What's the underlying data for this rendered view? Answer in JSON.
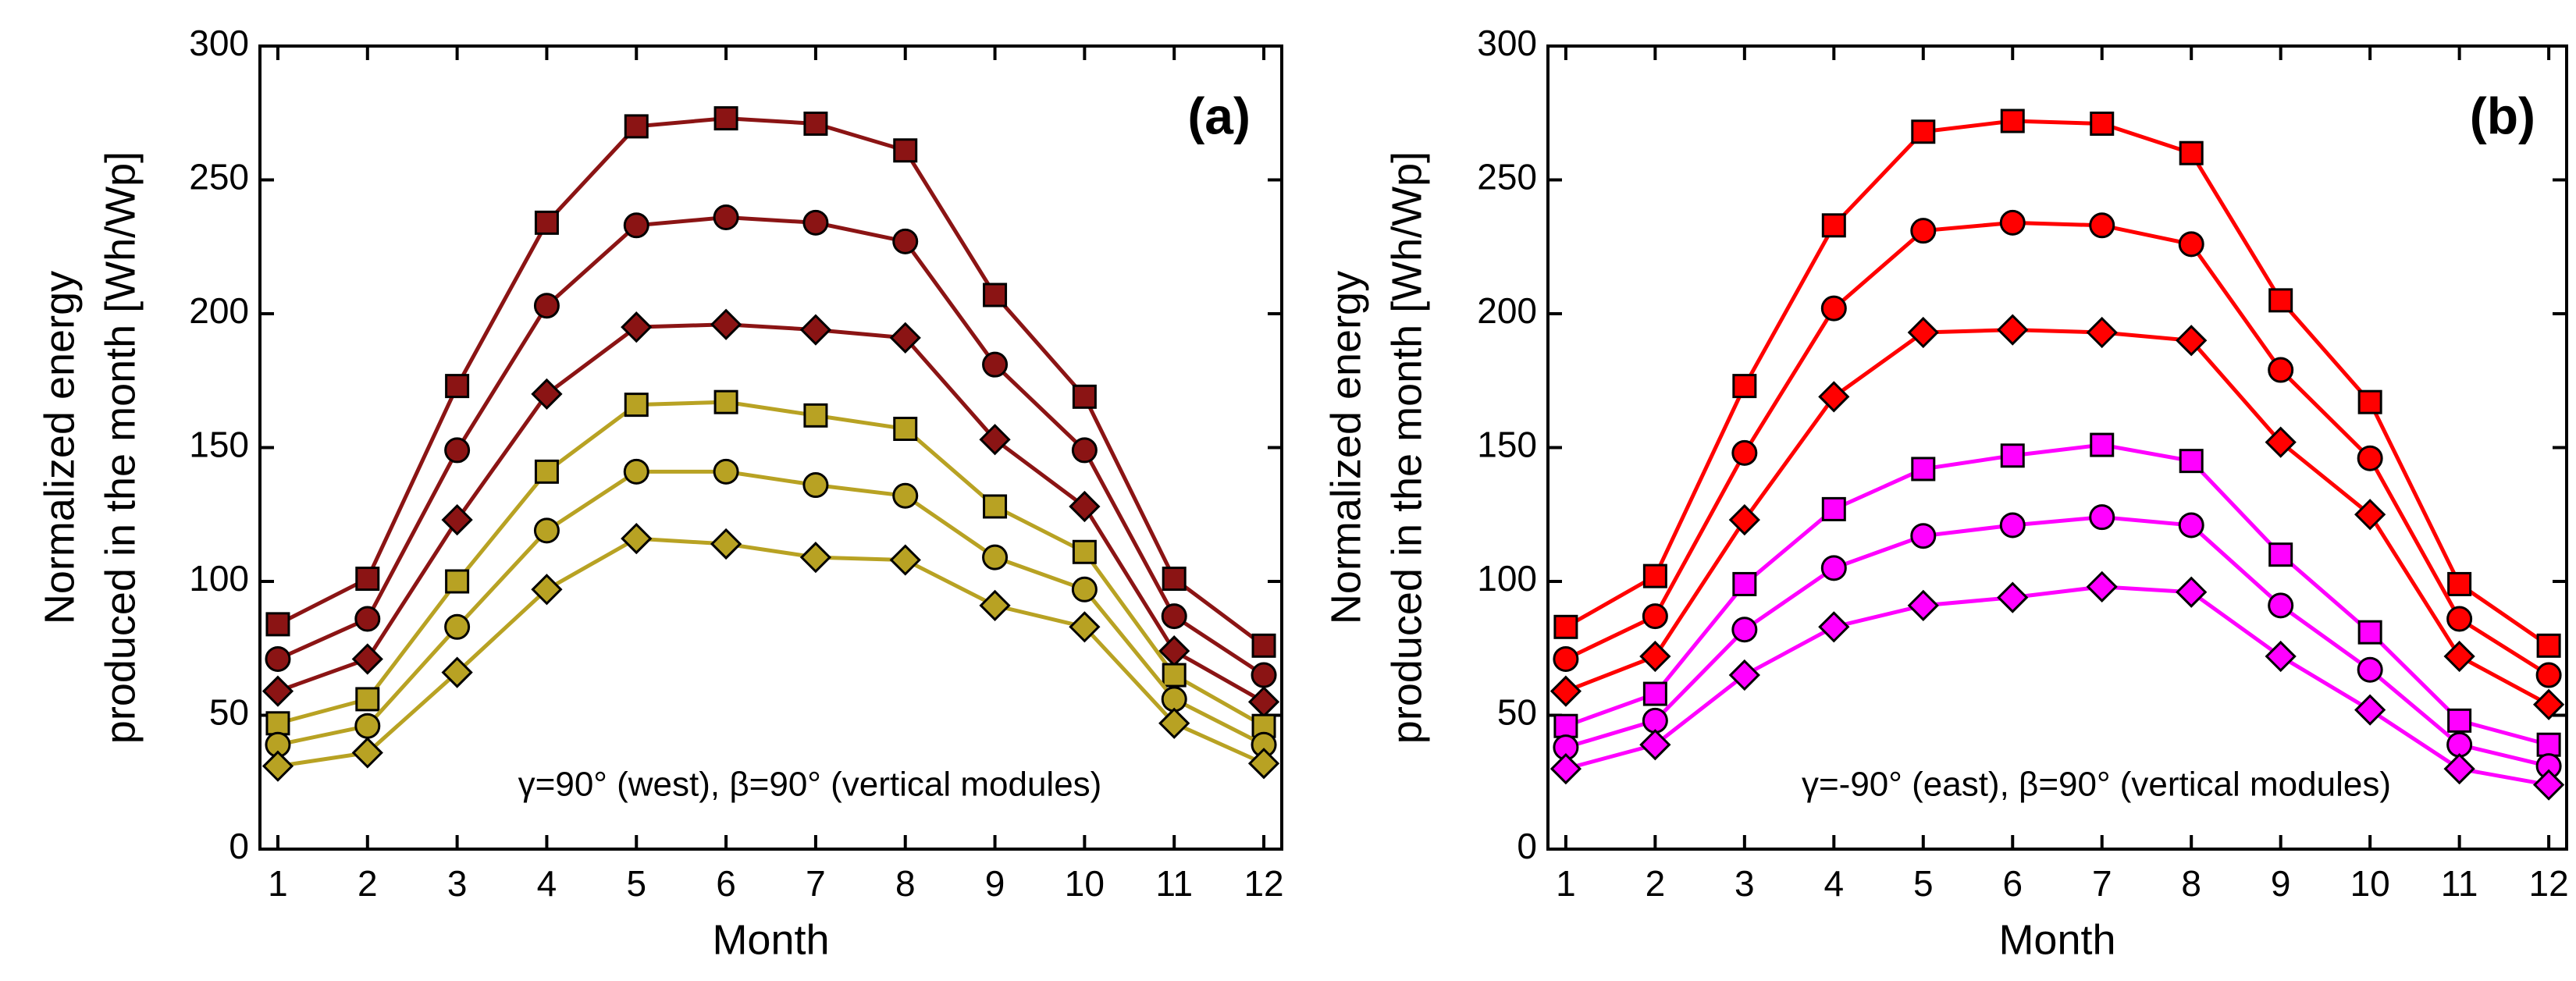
{
  "chart_data": [
    {
      "type": "line",
      "panel": "(a)",
      "annotation": "γ=90° (west), β=90° (vertical modules)",
      "xlabel": "Month",
      "ylabel": [
        "Normalized energy",
        "produced in the month [Wh/Wp]"
      ],
      "x": [
        1,
        2,
        3,
        4,
        5,
        6,
        7,
        8,
        9,
        10,
        11,
        12
      ],
      "xlim": [
        0.8,
        12.2
      ],
      "xticks": [
        1,
        2,
        3,
        4,
        5,
        6,
        7,
        8,
        9,
        10,
        11,
        12
      ],
      "ylim": [
        0,
        300
      ],
      "yticks": [
        0,
        50,
        100,
        150,
        200,
        250,
        300
      ],
      "series": [
        {
          "color": "#8b1414",
          "marker": "square",
          "values": [
            84,
            101,
            173,
            234,
            270,
            273,
            271,
            261,
            207,
            169,
            101,
            76
          ]
        },
        {
          "color": "#8b1414",
          "marker": "circle",
          "values": [
            71,
            86,
            149,
            203,
            233,
            236,
            234,
            227,
            181,
            149,
            87,
            65
          ]
        },
        {
          "color": "#8b1414",
          "marker": "diamond",
          "values": [
            59,
            71,
            123,
            170,
            195,
            196,
            194,
            191,
            153,
            128,
            74,
            55
          ]
        },
        {
          "color": "#b8a223",
          "marker": "square",
          "values": [
            47,
            56,
            100,
            141,
            166,
            167,
            162,
            157,
            128,
            111,
            65,
            46
          ]
        },
        {
          "color": "#b8a223",
          "marker": "circle",
          "values": [
            39,
            46,
            83,
            119,
            141,
            141,
            136,
            132,
            109,
            97,
            56,
            39
          ]
        },
        {
          "color": "#b8a223",
          "marker": "diamond",
          "values": [
            31,
            36,
            66,
            97,
            116,
            114,
            109,
            108,
            91,
            83,
            47,
            32
          ]
        }
      ]
    },
    {
      "type": "line",
      "panel": "(b)",
      "annotation": "γ=-90° (east), β=90° (vertical modules)",
      "xlabel": "Month",
      "ylabel": [
        "Normalized energy",
        "produced in the month [Wh/Wp]"
      ],
      "x": [
        1,
        2,
        3,
        4,
        5,
        6,
        7,
        8,
        9,
        10,
        11,
        12
      ],
      "xlim": [
        0.8,
        12.2
      ],
      "xticks": [
        1,
        2,
        3,
        4,
        5,
        6,
        7,
        8,
        9,
        10,
        11,
        12
      ],
      "ylim": [
        0,
        300
      ],
      "yticks": [
        0,
        50,
        100,
        150,
        200,
        250,
        300
      ],
      "series": [
        {
          "color": "#ff0000",
          "marker": "square",
          "values": [
            83,
            102,
            173,
            233,
            268,
            272,
            271,
            260,
            205,
            167,
            99,
            76
          ]
        },
        {
          "color": "#ff0000",
          "marker": "circle",
          "values": [
            71,
            87,
            148,
            202,
            231,
            234,
            233,
            226,
            179,
            146,
            86,
            65
          ]
        },
        {
          "color": "#ff0000",
          "marker": "diamond",
          "values": [
            59,
            72,
            123,
            169,
            193,
            194,
            193,
            190,
            152,
            125,
            72,
            54
          ]
        },
        {
          "color": "#ff00ff",
          "marker": "square",
          "values": [
            46,
            58,
            99,
            127,
            142,
            147,
            151,
            145,
            110,
            81,
            48,
            39
          ]
        },
        {
          "color": "#ff00ff",
          "marker": "circle",
          "values": [
            38,
            48,
            82,
            105,
            117,
            121,
            124,
            121,
            91,
            67,
            39,
            31
          ]
        },
        {
          "color": "#ff00ff",
          "marker": "diamond",
          "values": [
            30,
            39,
            65,
            83,
            91,
            94,
            98,
            96,
            72,
            52,
            30,
            24
          ]
        }
      ]
    }
  ]
}
